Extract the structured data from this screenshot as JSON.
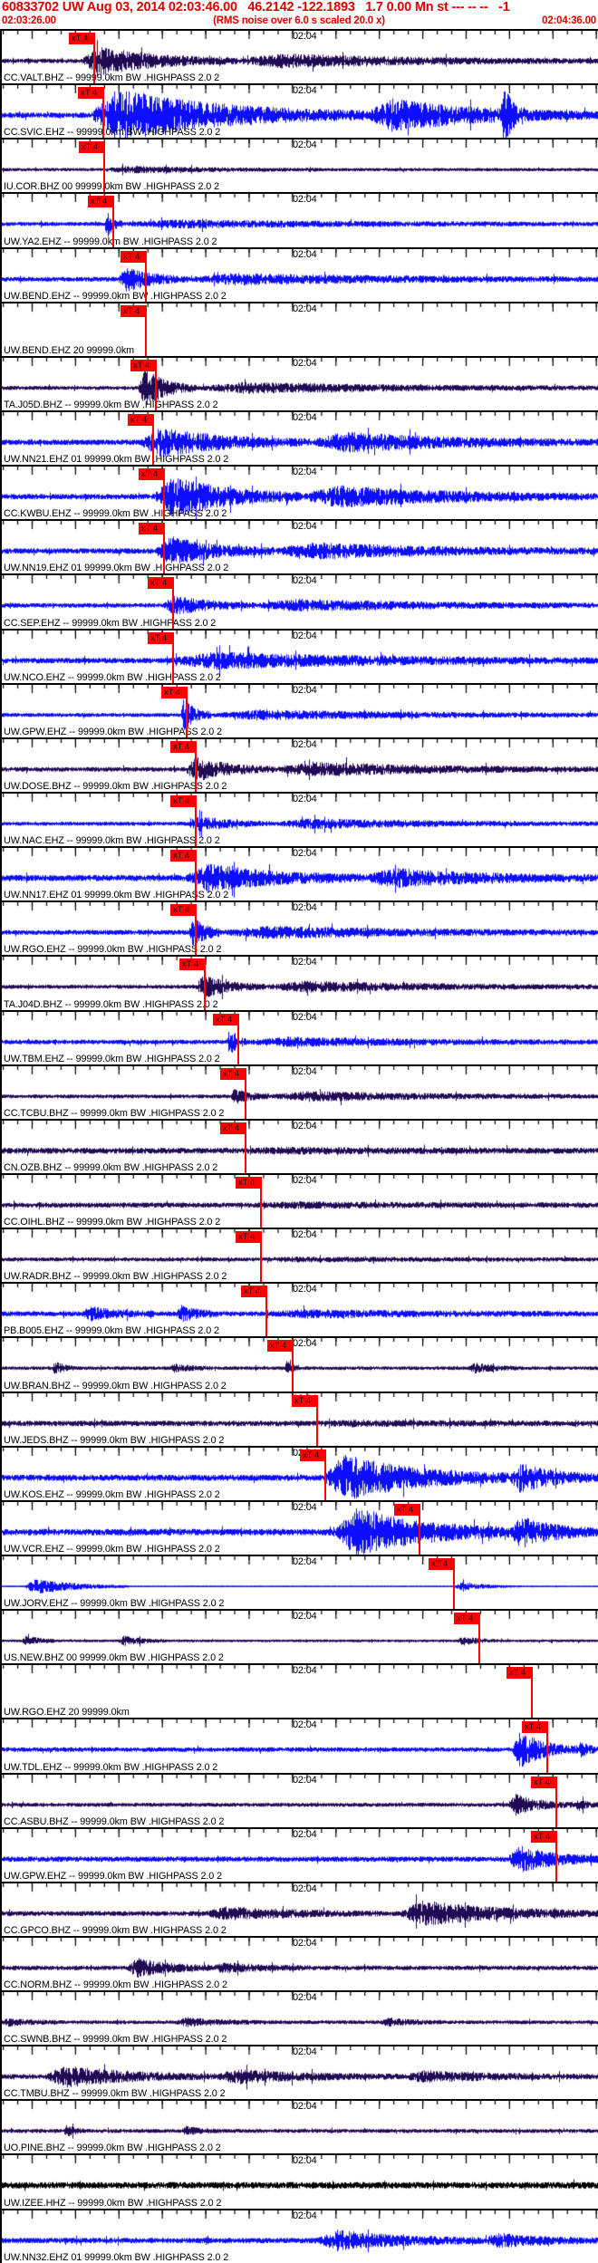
{
  "header": {
    "event_line": "60833702 UW Aug 03, 2014 02:03:46.00   46.2142 -122.1893   1.7 0.00 Mn st --- -- --   -1",
    "window_start_time": "02:03:26.00",
    "scale_note": "(RMS noise over 6.0 s scaled 20.0 x)",
    "window_end_time": "02:04:36.00",
    "text_color": "#e00000"
  },
  "ruler": {
    "time_tick_label": "02:04",
    "tick_label_x": 321,
    "major_tick_step": 47.9,
    "major_tick_start": 33.5,
    "minor_tick_step": 15.966
  },
  "pick_flag": {
    "label": "xT 4",
    "color": "#ff0000"
  },
  "colors": {
    "blue": "#0d0dff",
    "dark": "#200a54",
    "black": "#000000",
    "red": "#ff0000",
    "background": "#ffffff",
    "border": "#000000"
  },
  "traces": [
    {
      "label": "CC.VALT.BHZ -- 99999.0km BW .HIGHPASS 2.0 2",
      "color": "dark",
      "pick": 103,
      "base": 2.2,
      "bursts": [
        [
          88,
          260,
          14
        ],
        [
          260,
          660,
          6
        ]
      ]
    },
    {
      "label": "CC.SVIC.EHZ -- 99999.0km BW .HIGHPASS 2.0 2",
      "color": "blue",
      "pick": 113,
      "base": 2.8,
      "bursts": [
        [
          96,
          400,
          26
        ],
        [
          400,
          660,
          16
        ],
        [
          550,
          578,
          28
        ]
      ]
    },
    {
      "label": "IU.COR.BHZ 00 99999.0km BW .HIGHPASS 2.0 2",
      "color": "dark",
      "pick": 114,
      "base": 1.6,
      "bursts": [
        [
          112,
          350,
          2.5
        ]
      ]
    },
    {
      "label": "UW.YA2.EHZ -- 99999.0km BW .HIGHPASS 2.0 2",
      "color": "blue",
      "pick": 124,
      "base": 2.0,
      "bursts": [
        [
          113,
          133,
          15
        ],
        [
          133,
          660,
          3
        ]
      ]
    },
    {
      "label": "UW.BEND.EHZ -- 99999.0km BW .HIGHPASS 2.0 2",
      "color": "blue",
      "pick": 160,
      "base": 2.4,
      "bursts": [
        [
          128,
          205,
          12
        ],
        [
          205,
          660,
          4.5
        ]
      ]
    },
    {
      "label": "UW.BEND.EHZ 20 99999.0km",
      "color": "blue",
      "pick": 160,
      "empty": true,
      "base": 0,
      "bursts": []
    },
    {
      "label": "TA.J05D.BHZ -- 99999.0km BW .HIGHPASS 2.0 2",
      "color": "dark",
      "pick": 171,
      "base": 2.0,
      "bursts": [
        [
          150,
          215,
          19
        ],
        [
          215,
          660,
          4.5
        ]
      ]
    },
    {
      "label": "UW.NN21.EHZ 01 99999.0km BW .HIGHPASS 2.0 2",
      "color": "blue",
      "pick": 168,
      "base": 2.8,
      "bursts": [
        [
          152,
          340,
          14
        ],
        [
          340,
          660,
          9
        ]
      ]
    },
    {
      "label": "CC.KWBU.EHZ -- 99999.0km BW .HIGHPASS 2.0 2",
      "color": "blue",
      "pick": 180,
      "base": 2.8,
      "bursts": [
        [
          168,
          330,
          21
        ],
        [
          330,
          660,
          10
        ]
      ]
    },
    {
      "label": "UW.NN19.EHZ 01 99999.0km BW .HIGHPASS 2.0 2",
      "color": "blue",
      "pick": 180,
      "base": 2.8,
      "bursts": [
        [
          170,
          300,
          14
        ],
        [
          300,
          660,
          7
        ]
      ]
    },
    {
      "label": "CC.SEP.EHZ -- 99999.0km BW .HIGHPASS 2.0 2",
      "color": "blue",
      "pick": 190,
      "base": 2.3,
      "bursts": [
        [
          178,
          280,
          9
        ],
        [
          280,
          660,
          5
        ]
      ]
    },
    {
      "label": "UW.NCO.EHZ -- 99999.0km BW .HIGHPASS 2.0 2",
      "color": "blue",
      "pick": 190,
      "base": 2.8,
      "bursts": [
        [
          180,
          660,
          7
        ]
      ]
    },
    {
      "label": "UW.GPW.EHZ -- 99999.0km BW .HIGHPASS 2.0 2",
      "color": "blue",
      "pick": 205,
      "base": 2.0,
      "bursts": [
        [
          196,
          232,
          16
        ],
        [
          232,
          660,
          4
        ]
      ]
    },
    {
      "label": "UW.DOSE.BHZ -- 99999.0km BW .HIGHPASS 2.0 2",
      "color": "dark",
      "pick": 215,
      "base": 2.3,
      "bursts": [
        [
          202,
          300,
          12
        ],
        [
          300,
          660,
          6
        ]
      ]
    },
    {
      "label": "UW.NAC.EHZ -- 99999.0km BW .HIGHPASS 2.0 2",
      "color": "blue",
      "pick": 215,
      "base": 2.0,
      "bursts": [
        [
          205,
          300,
          7
        ],
        [
          300,
          660,
          4
        ]
      ]
    },
    {
      "label": "UW.NN17.EHZ 01 99999.0km BW .HIGHPASS 2.0 2",
      "color": "blue",
      "pick": 215,
      "base": 3.2,
      "bursts": [
        [
          203,
          400,
          13
        ],
        [
          400,
          660,
          8
        ]
      ]
    },
    {
      "label": "UW.RGO.EHZ -- 99999.0km BW .HIGHPASS 2.0 2",
      "color": "blue",
      "pick": 215,
      "base": 2.5,
      "bursts": [
        [
          206,
          244,
          15
        ],
        [
          244,
          660,
          5
        ]
      ]
    },
    {
      "label": "TA.J04D.BHZ -- 99999.0km BW .HIGHPASS 2.0 2",
      "color": "dark",
      "pick": 225,
      "base": 2.0,
      "bursts": [
        [
          213,
          290,
          11
        ],
        [
          290,
          660,
          4.5
        ]
      ]
    },
    {
      "label": "UW.TBM.EHZ -- 99999.0km BW .HIGHPASS 2.0 2",
      "color": "blue",
      "pick": 262,
      "base": 2.3,
      "bursts": [
        [
          248,
          270,
          14
        ],
        [
          270,
          660,
          3.5
        ]
      ]
    },
    {
      "label": "CC.TCBU.BHZ -- 99999.0km BW .HIGHPASS 2.0 2",
      "color": "dark",
      "pick": 270,
      "base": 1.9,
      "bursts": [
        [
          252,
          295,
          8
        ],
        [
          295,
          660,
          4
        ]
      ]
    },
    {
      "label": "CN.OZB.BHZ -- 99999.0km BW .HIGHPASS 2.0 2",
      "color": "dark",
      "pick": 270,
      "base": 3.0,
      "bursts": [
        [
          265,
          660,
          1.2
        ]
      ]
    },
    {
      "label": "CC.OIHL.BHZ -- 99999.0km BW .HIGHPASS 2.0 2",
      "color": "dark",
      "pick": 287,
      "base": 2.6,
      "bursts": [
        [
          280,
          660,
          1.5
        ]
      ]
    },
    {
      "label": "UW.RADR.BHZ -- 99999.0km BW .HIGHPASS 2.0 2",
      "color": "dark",
      "pick": 287,
      "base": 2.0,
      "bursts": [
        [
          285,
          660,
          1.2
        ]
      ]
    },
    {
      "label": "PB.B005.EHZ -- 99999.0km BW .HIGHPASS 2.0 2",
      "color": "blue",
      "pick": 293,
      "base": 2.6,
      "bursts": [
        [
          88,
          170,
          6
        ],
        [
          192,
          242,
          7
        ],
        [
          293,
          660,
          2.5
        ]
      ]
    },
    {
      "label": "UW.BRAN.BHZ -- 99999.0km BW .HIGHPASS 2.0 2",
      "color": "dark",
      "pick": 322,
      "base": 1.8,
      "bursts": [
        [
          55,
          82,
          6
        ],
        [
          185,
          232,
          3.5
        ],
        [
          312,
          328,
          7
        ],
        [
          515,
          570,
          4.5
        ]
      ]
    },
    {
      "label": "UW.JEDS.BHZ -- 99999.0km BW .HIGHPASS 2.0 2",
      "color": "dark",
      "pick": 349,
      "base": 2.8,
      "bursts": [
        [
          349,
          660,
          1.2
        ]
      ]
    },
    {
      "label": "UW.KOS.EHZ -- 99999.0km BW .HIGHPASS 2.0 2",
      "color": "blue",
      "pick": 358,
      "base": 3.2,
      "bursts": [
        [
          354,
          560,
          23
        ],
        [
          560,
          660,
          14
        ]
      ]
    },
    {
      "label": "UW.VCR.EHZ -- 99999.0km BW .HIGHPASS 2.0 2",
      "color": "blue",
      "pick": 462,
      "base": 3.4,
      "bursts": [
        [
          368,
          560,
          25
        ],
        [
          560,
          660,
          15
        ]
      ]
    },
    {
      "label": "UW.JORV.EHZ -- 99999.0km BW .HIGHPASS 2.0 2",
      "color": "blue",
      "pick": 500,
      "base": 0.5,
      "bursts": [
        [
          24,
          140,
          8
        ],
        [
          498,
          575,
          4
        ]
      ]
    },
    {
      "label": "US.NEW.BHZ 00 99999.0km BW .HIGHPASS 2.0 2",
      "color": "dark",
      "pick": 528,
      "base": 1.3,
      "bursts": [
        [
          22,
          60,
          5
        ],
        [
          128,
          180,
          4.5
        ],
        [
          503,
          548,
          4
        ]
      ]
    },
    {
      "label": "UW.RGO.EHZ 20 99999.0km",
      "color": "blue",
      "pick": 586,
      "empty": true,
      "base": 0,
      "bursts": []
    },
    {
      "label": "UW.TDL.EHZ -- 99999.0km BW .HIGHPASS 2.0 2",
      "color": "blue",
      "pick": 603,
      "base": 2.3,
      "bursts": [
        [
          563,
          636,
          18
        ],
        [
          636,
          660,
          8
        ]
      ]
    },
    {
      "label": "CC.ASBU.BHZ -- 99999.0km BW .HIGHPASS 2.0 2",
      "color": "dark",
      "pick": 613,
      "base": 2.0,
      "bursts": [
        [
          558,
          632,
          10
        ],
        [
          632,
          660,
          5
        ]
      ]
    },
    {
      "label": "UW.GPW.EHZ -- 99999.0km BW .HIGHPASS 2.0 2",
      "color": "blue",
      "pick": 613,
      "base": 2.7,
      "bursts": [
        [
          558,
          660,
          13
        ]
      ]
    },
    {
      "label": "CC.GPCO.BHZ -- 99999.0km BW .HIGHPASS 2.0 2",
      "color": "dark",
      "pick": null,
      "base": 2.5,
      "bursts": [
        [
          225,
          420,
          5.5
        ],
        [
          438,
          660,
          12
        ]
      ]
    },
    {
      "label": "CC.NORM.BHZ -- 99999.0km BW .HIGHPASS 2.0 2",
      "color": "dark",
      "pick": null,
      "base": 2.3,
      "bursts": [
        [
          138,
          232,
          9
        ],
        [
          232,
          340,
          4
        ]
      ]
    },
    {
      "label": "CC.SWNB.BHZ -- 99999.0km BW .HIGHPASS 2.0 2",
      "color": "dark",
      "pick": null,
      "base": 1.9,
      "bursts": [
        [
          0,
          62,
          3
        ],
        [
          192,
          292,
          3.5
        ],
        [
          418,
          485,
          3.5
        ]
      ]
    },
    {
      "label": "CC.TMBU.BHZ -- 99999.0km BW .HIGHPASS 2.0 2",
      "color": "dark",
      "pick": null,
      "base": 2.4,
      "bursts": [
        [
          48,
          235,
          10
        ],
        [
          235,
          440,
          6
        ],
        [
          440,
          660,
          4.5
        ]
      ]
    },
    {
      "label": "UO.PINE.BHZ -- 99999.0km BW .HIGHPASS 2.0 2",
      "color": "dark",
      "pick": null,
      "base": 2.0,
      "bursts": [
        [
          68,
          94,
          5
        ],
        [
          198,
          242,
          3.5
        ]
      ]
    },
    {
      "label": "UW.IZEE.HHZ -- 99999.0km BW .HIGHPASS 2.0 2",
      "color": "black",
      "pick": null,
      "base": 3.4,
      "bursts": []
    },
    {
      "label": "UW.NN32.EHZ 01 99999.0km BW .HIGHPASS 2.0 2",
      "color": "blue",
      "pick": null,
      "base": 2.8,
      "bursts": [
        [
          348,
          532,
          9
        ],
        [
          532,
          660,
          6
        ]
      ]
    }
  ]
}
